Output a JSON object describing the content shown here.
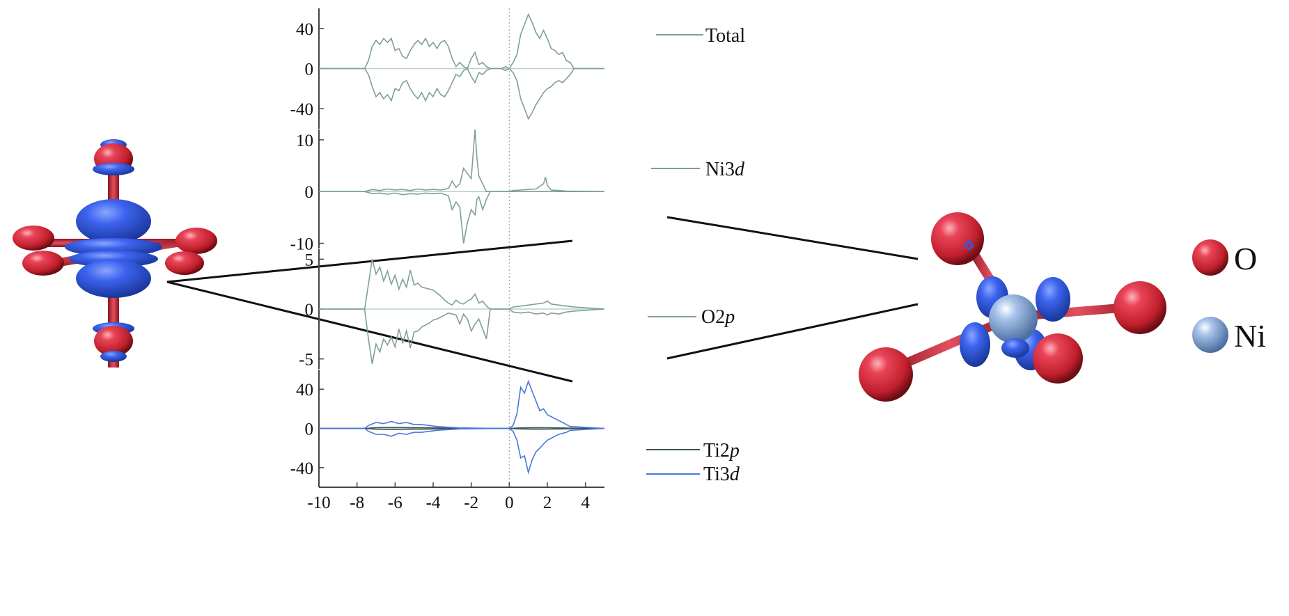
{
  "chart_data": [
    {
      "type": "line",
      "panel": "total",
      "title": "",
      "xlabel": "",
      "ylabel": "",
      "xlim": [
        -10,
        5
      ],
      "ylim": [
        -60,
        60
      ],
      "xticks": [
        -10,
        -8,
        -6,
        -4,
        -2,
        0,
        2,
        4
      ],
      "yticks": [
        40,
        0,
        -40
      ],
      "ytick_labels": [
        "40",
        "0",
        "-40"
      ],
      "grid": false,
      "legend_position": "top-right",
      "colors": {
        "Total": "#7f9f98"
      },
      "series": [
        {
          "name": "Total",
          "x": [
            -10,
            -7.6,
            -7.4,
            -7.2,
            -7.0,
            -6.8,
            -6.6,
            -6.4,
            -6.2,
            -6.0,
            -5.8,
            -5.6,
            -5.4,
            -5.2,
            -5.0,
            -4.8,
            -4.6,
            -4.4,
            -4.2,
            -4.0,
            -3.8,
            -3.6,
            -3.4,
            -3.2,
            -3.0,
            -2.8,
            -2.6,
            -2.4,
            -2.2,
            -2.0,
            -1.8,
            -1.6,
            -1.4,
            -1.2,
            -1.0,
            -0.8,
            -0.6,
            -0.4,
            -0.2,
            0.0,
            0.2,
            0.4,
            0.6,
            0.8,
            1.0,
            1.2,
            1.4,
            1.6,
            1.8,
            2.0,
            2.2,
            2.4,
            2.6,
            2.8,
            3.0,
            3.2,
            3.4,
            5
          ],
          "up": [
            0,
            0,
            8,
            22,
            28,
            24,
            30,
            26,
            30,
            18,
            20,
            12,
            10,
            18,
            24,
            28,
            24,
            30,
            22,
            26,
            20,
            26,
            28,
            22,
            10,
            2,
            6,
            2,
            0,
            10,
            16,
            4,
            6,
            2,
            0,
            0,
            0,
            0,
            2,
            0,
            6,
            14,
            34,
            44,
            54,
            46,
            36,
            30,
            38,
            30,
            20,
            18,
            14,
            16,
            8,
            6,
            0,
            0
          ],
          "down": [
            0,
            0,
            -6,
            -18,
            -28,
            -24,
            -30,
            -26,
            -32,
            -20,
            -22,
            -14,
            -12,
            -20,
            -26,
            -30,
            -24,
            -32,
            -24,
            -28,
            -20,
            -26,
            -28,
            -22,
            -14,
            -6,
            -8,
            -2,
            0,
            -8,
            -14,
            -4,
            -6,
            -2,
            0,
            0,
            0,
            0,
            -2,
            0,
            -4,
            -12,
            -30,
            -40,
            -50,
            -44,
            -36,
            -30,
            -24,
            -20,
            -18,
            -14,
            -12,
            -14,
            -10,
            -6,
            0,
            0
          ]
        }
      ]
    },
    {
      "type": "line",
      "panel": "ni3d",
      "title": "",
      "xlabel": "",
      "ylabel": "",
      "xlim": [
        -10,
        5
      ],
      "ylim": [
        -11,
        12
      ],
      "yticks": [
        10,
        0,
        -10
      ],
      "ytick_labels": [
        "10",
        "0",
        "-10"
      ],
      "grid": false,
      "legend_position": "top-right",
      "colors": {
        "Ni3d": "#7f9f98"
      },
      "series": [
        {
          "name": "Ni3d",
          "x": [
            -10,
            -7.6,
            -7.2,
            -6.8,
            -6.4,
            -6.0,
            -5.6,
            -5.2,
            -4.8,
            -4.4,
            -4.0,
            -3.6,
            -3.2,
            -3.0,
            -2.8,
            -2.6,
            -2.4,
            -2.2,
            -2.0,
            -1.8,
            -1.7,
            -1.6,
            -1.4,
            -1.2,
            -1.0,
            0.0,
            0.2,
            0.6,
            1.0,
            1.4,
            1.8,
            1.9,
            2.0,
            2.2,
            2.6,
            3.0,
            5
          ],
          "up": [
            0,
            0,
            0.4,
            0.2,
            0.5,
            0.3,
            0.4,
            0.2,
            0.5,
            0.3,
            0.4,
            0.3,
            0.6,
            2.0,
            0.8,
            1.5,
            4.5,
            3.5,
            2.5,
            12.0,
            6.5,
            3.0,
            1.5,
            0,
            0,
            0,
            0.2,
            0.3,
            0.4,
            0.5,
            1.5,
            2.8,
            1.2,
            0.3,
            0.2,
            0.1,
            0
          ],
          "down": [
            0,
            0,
            -0.4,
            -0.3,
            -0.5,
            -0.3,
            -0.6,
            -0.4,
            -0.5,
            -0.3,
            -0.4,
            -0.3,
            -0.8,
            -3.5,
            -2.0,
            -3.0,
            -10.0,
            -6.0,
            -3.5,
            -4.5,
            -1.5,
            -1.0,
            -3.5,
            -1.5,
            0,
            0,
            0,
            0,
            0,
            0,
            0,
            0,
            0,
            0,
            0,
            0,
            0
          ]
        }
      ]
    },
    {
      "type": "line",
      "panel": "o2p",
      "title": "",
      "xlabel": "",
      "ylabel": "",
      "xlim": [
        -10,
        5
      ],
      "ylim": [
        -6,
        6
      ],
      "yticks": [
        5,
        0,
        -5
      ],
      "ytick_labels": [
        "5",
        "0",
        "-5"
      ],
      "grid": false,
      "legend_position": "top-right",
      "colors": {
        "O2p": "#7f9f98"
      },
      "series": [
        {
          "name": "O2p",
          "x": [
            -10,
            -7.6,
            -7.4,
            -7.2,
            -7.0,
            -6.8,
            -6.6,
            -6.4,
            -6.2,
            -6.0,
            -5.8,
            -5.6,
            -5.4,
            -5.2,
            -5.0,
            -4.8,
            -4.6,
            -4.4,
            -4.2,
            -4.0,
            -3.8,
            -3.6,
            -3.4,
            -3.2,
            -3.0,
            -2.8,
            -2.6,
            -2.4,
            -2.2,
            -2.0,
            -1.8,
            -1.6,
            -1.4,
            -1.2,
            -1.0,
            0.0,
            0.2,
            0.6,
            1.0,
            1.4,
            1.8,
            2.0,
            2.2,
            2.6,
            3.0,
            3.4,
            5
          ],
          "up": [
            0,
            0,
            2.5,
            5.0,
            3.5,
            4.2,
            2.8,
            3.8,
            2.5,
            3.4,
            2.0,
            3.0,
            2.2,
            3.9,
            2.4,
            2.6,
            2.2,
            2.1,
            2.0,
            1.9,
            1.6,
            1.3,
            0.9,
            0.6,
            0.4,
            0.9,
            0.6,
            0.5,
            0.8,
            1.0,
            1.5,
            0.6,
            0.8,
            0.3,
            0,
            0,
            0.2,
            0.3,
            0.4,
            0.5,
            0.6,
            0.8,
            0.5,
            0.4,
            0.3,
            0.2,
            0
          ],
          "down": [
            0,
            0,
            -3.0,
            -5.5,
            -3.5,
            -4.3,
            -3.0,
            -3.6,
            -2.8,
            -3.8,
            -2.0,
            -3.4,
            -2.2,
            -3.9,
            -2.3,
            -2.2,
            -1.8,
            -1.6,
            -1.4,
            -1.1,
            -1.0,
            -0.8,
            -0.6,
            -0.4,
            -0.5,
            -0.6,
            -1.5,
            -0.5,
            -1.0,
            -2.2,
            -1.5,
            -1.0,
            -2.0,
            -3.0,
            0,
            0,
            -0.3,
            -0.4,
            -0.3,
            -0.5,
            -0.4,
            -0.6,
            -0.4,
            -0.5,
            -0.3,
            -0.2,
            0
          ]
        }
      ]
    },
    {
      "type": "line",
      "panel": "ti",
      "title": "",
      "xlabel": "",
      "ylabel": "",
      "xlim": [
        -10,
        5
      ],
      "ylim": [
        -60,
        60
      ],
      "xticks": [
        -10,
        -8,
        -6,
        -4,
        -2,
        0,
        2,
        4
      ],
      "xtick_labels": [
        "-10",
        "-8",
        "-6",
        "-4",
        "-2",
        "0",
        "2",
        "4"
      ],
      "yticks": [
        40,
        0,
        -40
      ],
      "ytick_labels": [
        "40",
        "0",
        "-40"
      ],
      "grid": false,
      "legend_position": "top-right",
      "colors": {
        "Ti2p": "#3f5752",
        "Ti3d": "#4a76e0"
      },
      "series": [
        {
          "name": "Ti2p",
          "x": [
            -10,
            -7.6,
            -7.0,
            -6.4,
            -5.8,
            -5.2,
            -4.6,
            -4.0,
            -3.4,
            -3.0,
            0.0,
            0.4,
            0.8,
            1.2,
            1.6,
            2.0,
            2.4,
            2.8,
            3.2,
            5
          ],
          "up": [
            0,
            0,
            0.8,
            1.0,
            1.0,
            0.8,
            0.8,
            0.6,
            0.4,
            0,
            0,
            0.4,
            0.6,
            0.8,
            0.8,
            0.7,
            0.6,
            0.5,
            0.3,
            0
          ],
          "down": [
            0,
            0,
            -0.8,
            -1.0,
            -1.0,
            -0.8,
            -0.8,
            -0.6,
            -0.4,
            0,
            0,
            -0.4,
            -0.6,
            -0.8,
            -0.8,
            -0.7,
            -0.6,
            -0.5,
            -0.3,
            0
          ]
        },
        {
          "name": "Ti3d",
          "x": [
            -10,
            -7.6,
            -7.4,
            -7.0,
            -6.6,
            -6.2,
            -5.8,
            -5.4,
            -5.0,
            -4.6,
            -4.2,
            -3.8,
            -3.4,
            -3.0,
            -2.6,
            -2.2,
            -1.8,
            -1.4,
            -1.0,
            0.0,
            0.2,
            0.4,
            0.6,
            0.8,
            1.0,
            1.2,
            1.4,
            1.6,
            1.8,
            2.0,
            2.2,
            2.4,
            2.6,
            2.8,
            3.0,
            3.2,
            5
          ],
          "up": [
            0,
            0,
            3,
            6,
            5,
            7,
            5,
            6,
            4,
            4,
            3,
            2,
            1.5,
            1,
            0.5,
            0.5,
            0.3,
            0.2,
            0,
            0,
            3,
            15,
            42,
            36,
            48,
            38,
            28,
            18,
            20,
            14,
            12,
            10,
            8,
            6,
            4,
            2,
            0
          ],
          "down": [
            0,
            0,
            -3,
            -6,
            -6,
            -8,
            -5,
            -6,
            -4,
            -4,
            -3,
            -2,
            -1.5,
            -1,
            -0.5,
            -0.5,
            -0.3,
            -0.2,
            0,
            0,
            -3,
            -12,
            -30,
            -28,
            -45,
            -32,
            -24,
            -20,
            -16,
            -12,
            -10,
            -8,
            -6,
            -5,
            -4,
            -2,
            0
          ]
        }
      ]
    }
  ],
  "legend": {
    "total": "Total",
    "ni3d_main": "Ni3",
    "ni3d_italic": "d",
    "o2p_main": "O2",
    "o2p_italic": "p",
    "ti2p_main": "Ti2",
    "ti2p_italic": "p",
    "ti3d_main": "Ti3",
    "ti3d_italic": "d"
  },
  "atoms_legend": {
    "o_label": "O",
    "ni_label": "Ni",
    "o_color": "#d6273a",
    "ni_color": "#7fa6d6"
  },
  "colors": {
    "orbital_blue": "#2f5bd8",
    "oxygen_red": "#d6273a",
    "nickel_blue": "#7fa6d6",
    "line_gray": "#7f9f98",
    "axis": "#444444"
  }
}
